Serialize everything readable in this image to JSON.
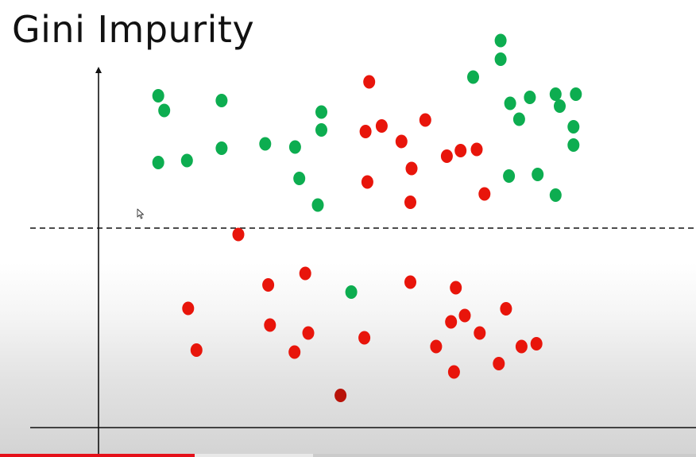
{
  "slide": {
    "title": "Gini Impurity"
  },
  "colors": {
    "green_class": "#0dad50",
    "red_class": "#e8150b",
    "dark_red_class": "#b81208",
    "axis": "#111111",
    "progress_played": "#e5101a"
  },
  "icons": {
    "cursor": "mouse-pointer-icon"
  },
  "video": {
    "progress_fraction": 0.28,
    "buffered_fraction": 0.45
  },
  "chart_data": {
    "type": "scatter",
    "title": "",
    "xlabel": "",
    "ylabel": "",
    "xlim": [
      0,
      10
    ],
    "ylim": [
      0,
      10
    ],
    "grid": false,
    "split_line_y": 5.05,
    "series": [
      {
        "color": "#0dad50",
        "points": [
          [
            1.0,
            8.35
          ],
          [
            1.1,
            7.98
          ],
          [
            1.0,
            6.67
          ],
          [
            1.48,
            6.72
          ],
          [
            2.06,
            8.23
          ],
          [
            2.06,
            7.03
          ],
          [
            2.79,
            7.14
          ],
          [
            3.29,
            7.06
          ],
          [
            3.36,
            6.27
          ],
          [
            3.67,
            5.6
          ],
          [
            3.73,
            7.49
          ],
          [
            3.73,
            7.94
          ],
          [
            4.23,
            3.41
          ],
          [
            6.27,
            8.82
          ],
          [
            6.73,
            9.27
          ],
          [
            6.73,
            9.74
          ],
          [
            6.89,
            8.16
          ],
          [
            7.04,
            7.76
          ],
          [
            6.87,
            6.33
          ],
          [
            7.22,
            8.31
          ],
          [
            7.35,
            6.37
          ],
          [
            7.65,
            8.39
          ],
          [
            7.72,
            8.09
          ],
          [
            7.99,
            8.39
          ],
          [
            7.65,
            5.85
          ],
          [
            7.95,
            7.57
          ],
          [
            7.95,
            7.11
          ]
        ]
      },
      {
        "color": "#e8150b",
        "points": [
          [
            4.53,
            8.7
          ],
          [
            4.47,
            7.45
          ],
          [
            4.74,
            7.59
          ],
          [
            5.07,
            7.2
          ],
          [
            5.47,
            7.74
          ],
          [
            5.83,
            6.83
          ],
          [
            6.06,
            6.97
          ],
          [
            6.33,
            7.0
          ],
          [
            4.5,
            6.18
          ],
          [
            5.22,
            5.67
          ],
          [
            5.24,
            6.52
          ],
          [
            6.46,
            5.88
          ],
          [
            2.34,
            4.86
          ],
          [
            3.46,
            3.88
          ],
          [
            2.84,
            3.59
          ],
          [
            5.22,
            3.66
          ],
          [
            5.98,
            3.52
          ],
          [
            1.5,
            3.0
          ],
          [
            2.87,
            2.58
          ],
          [
            3.51,
            2.38
          ],
          [
            1.64,
            1.95
          ],
          [
            3.28,
            1.9
          ],
          [
            4.45,
            2.26
          ],
          [
            5.65,
            2.04
          ],
          [
            5.9,
            2.66
          ],
          [
            6.13,
            2.82
          ],
          [
            6.38,
            2.38
          ],
          [
            6.82,
            2.99
          ],
          [
            7.08,
            2.04
          ],
          [
            7.33,
            2.11
          ],
          [
            6.7,
            1.61
          ],
          [
            5.95,
            1.4
          ]
        ]
      },
      {
        "color": "#b81208",
        "points": [
          [
            4.05,
            0.81
          ]
        ]
      }
    ]
  }
}
